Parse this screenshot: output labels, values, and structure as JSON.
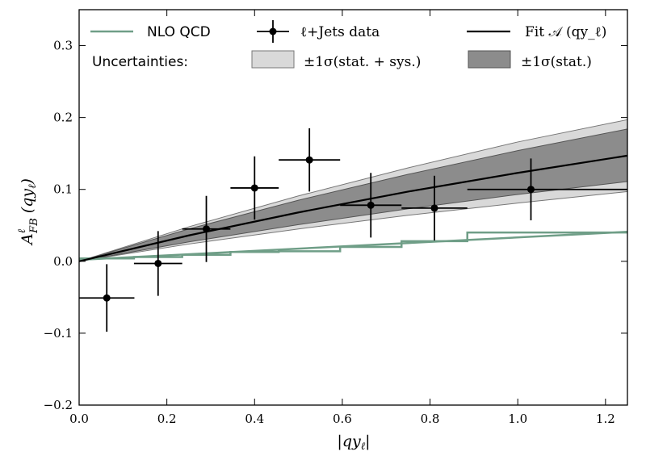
{
  "chart_data": {
    "type": "line",
    "xlabel": "|qy_ℓ|",
    "ylabel": "A^ℓ_FB (qy_ℓ)",
    "xlim": [
      0.0,
      1.25
    ],
    "ylim": [
      -0.2,
      0.35
    ],
    "x_ticks": [
      0.0,
      0.2,
      0.4,
      0.6,
      0.8,
      1.0,
      1.2
    ],
    "y_ticks": [
      -0.2,
      -0.1,
      0.0,
      0.1,
      0.2,
      0.3
    ],
    "x_tick_labels": [
      "0.0",
      "0.2",
      "0.4",
      "0.6",
      "0.8",
      "1.0",
      "1.2"
    ],
    "y_tick_labels": [
      "−0.2",
      "−0.1",
      "0.0",
      "0.1",
      "0.2",
      "0.3"
    ],
    "grid": false,
    "legend": {
      "nlo": "NLO QCD",
      "data": "ℓ+Jets data",
      "fit": "Fit 𝒜 (qy_ℓ)",
      "uncertainties": "Uncertainties:",
      "band_outer": "±1σ(stat. + sys.)",
      "band_inner": "±1σ(stat.)"
    },
    "colors": {
      "nlo": "#6f9e87",
      "data": "#000000",
      "fit": "#000000",
      "band_outer": "#d9d9d9",
      "band_inner": "#8c8c8c"
    },
    "nlo_qcd": {
      "style": "step",
      "edges": [
        0.0,
        0.125,
        0.235,
        0.345,
        0.455,
        0.595,
        0.735,
        0.885,
        1.25
      ],
      "values": [
        0.004,
        0.006,
        0.009,
        0.013,
        0.014,
        0.02,
        0.028,
        0.04
      ],
      "second_line": [
        [
          0.0,
          0.002
        ],
        [
          1.25,
          0.041
        ]
      ]
    },
    "data_points": {
      "x": [
        0.063,
        0.18,
        0.29,
        0.4,
        0.525,
        0.665,
        0.81,
        1.03
      ],
      "y": [
        -0.051,
        -0.003,
        0.045,
        0.102,
        0.141,
        0.078,
        0.074,
        0.1
      ],
      "xerr_low": [
        0.063,
        0.055,
        0.055,
        0.055,
        0.07,
        0.07,
        0.075,
        0.145
      ],
      "xerr_high": [
        0.063,
        0.055,
        0.055,
        0.055,
        0.07,
        0.07,
        0.075,
        0.22
      ],
      "yerr": [
        0.047,
        0.045,
        0.046,
        0.044,
        0.044,
        0.045,
        0.045,
        0.043
      ]
    },
    "fit": {
      "x": [
        0.0,
        0.25,
        0.5,
        0.75,
        1.0,
        1.25
      ],
      "y": [
        0.0,
        0.036,
        0.068,
        0.097,
        0.123,
        0.147
      ],
      "stat_low": [
        0.0,
        0.027,
        0.051,
        0.073,
        0.093,
        0.111
      ],
      "stat_high": [
        0.0,
        0.045,
        0.085,
        0.121,
        0.154,
        0.184
      ],
      "total_low": [
        0.0,
        0.024,
        0.045,
        0.064,
        0.081,
        0.097
      ],
      "total_high": [
        0.0,
        0.048,
        0.091,
        0.13,
        0.166,
        0.197
      ]
    }
  }
}
